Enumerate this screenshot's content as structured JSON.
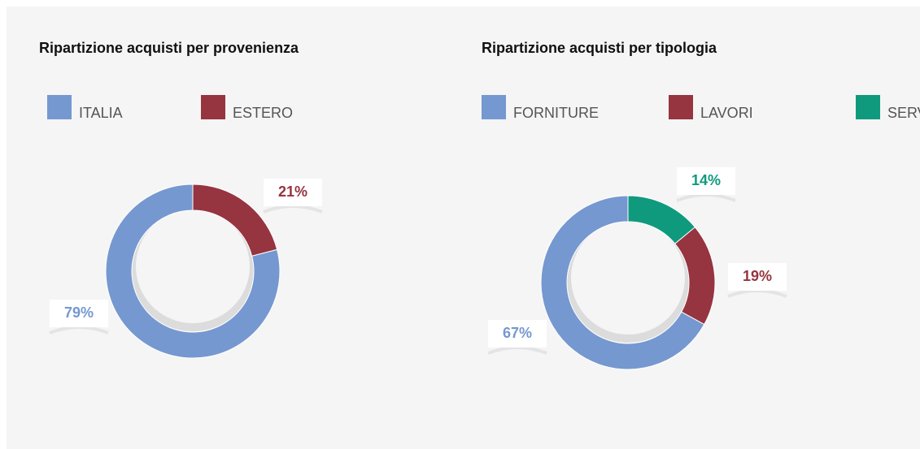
{
  "chart_data": [
    {
      "type": "donut",
      "title": "Ripartizione acquisti per provenienza",
      "categories": [
        "ITALIA",
        "ESTERO"
      ],
      "values": [
        79,
        21
      ],
      "value_labels": [
        "79%",
        "21%"
      ],
      "colors": [
        "#7698d0",
        "#963440"
      ],
      "legend": "top"
    },
    {
      "type": "donut",
      "title": "Ripartizione acquisti per tipologia",
      "categories": [
        "FORNITURE",
        "LAVORI",
        "SERVIZI"
      ],
      "values": [
        67,
        19,
        14
      ],
      "value_labels": [
        "67%",
        "19%",
        "14%"
      ],
      "colors": [
        "#7698d0",
        "#963440",
        "#0f9a7e"
      ],
      "legend": "top"
    }
  ]
}
